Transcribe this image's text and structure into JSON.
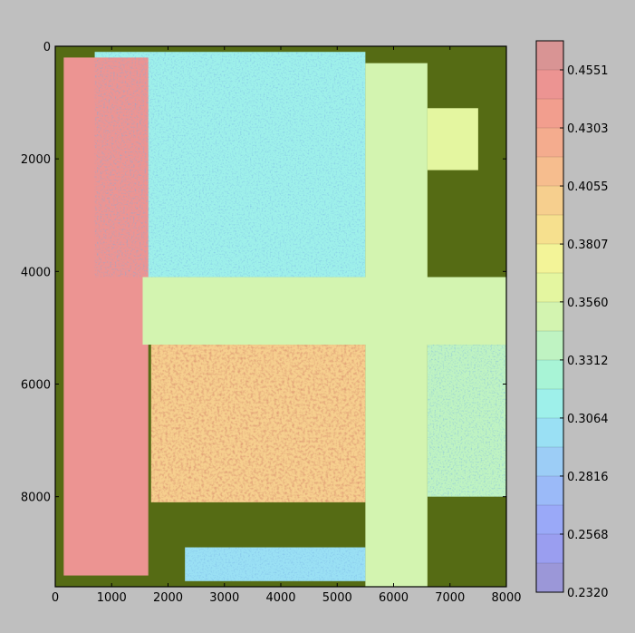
{
  "chart_data": {
    "type": "heatmap",
    "title": "",
    "xlabel": "",
    "ylabel": "",
    "xlim": [
      0,
      8000
    ],
    "ylim": [
      9600,
      0
    ],
    "x_ticks": [
      "0",
      "1000",
      "2000",
      "3000",
      "4000",
      "5000",
      "6000",
      "7000",
      "8000"
    ],
    "y_ticks": [
      "0",
      "2000",
      "4000",
      "6000",
      "8000"
    ],
    "x_tick_values": [
      0,
      1000,
      2000,
      3000,
      4000,
      5000,
      6000,
      7000,
      8000
    ],
    "y_tick_values": [
      0,
      2000,
      4000,
      6000,
      8000
    ],
    "colorbar": {
      "min": 0.232,
      "max": 0.4675,
      "levels": 19,
      "labels": [
        "0.4551",
        "0.4303",
        "0.4055",
        "0.3807",
        "0.3560",
        "0.3312",
        "0.3064",
        "0.2816",
        "0.2568",
        "0.2320"
      ],
      "label_values": [
        0.4551,
        0.4303,
        0.4055,
        0.3807,
        0.356,
        0.3312,
        0.3064,
        0.2816,
        0.2568,
        0.232
      ],
      "colors": [
        "#9b97d8",
        "#9a9ef0",
        "#9aa9f8",
        "#9bbaf8",
        "#9ccdf6",
        "#9ae0f4",
        "#9ef0ea",
        "#a8f4d6",
        "#bff3c2",
        "#d3f4b0",
        "#e4f6a0",
        "#f3f498",
        "#f6e08e",
        "#f6cf8e",
        "#f6bd8e",
        "#f4ac8e",
        "#f29e8e",
        "#ec9492",
        "#d99494"
      ]
    },
    "background_color": "#556b14",
    "regions": [
      {
        "label": "upper-left field",
        "x": [
          700,
          5500
        ],
        "y": [
          100,
          4100
        ],
        "mean_value": 0.31
      },
      {
        "label": "left roof strip",
        "x": [
          150,
          1650
        ],
        "y": [
          200,
          9400
        ],
        "mean_value": 0.455
      },
      {
        "label": "central road",
        "x": [
          1550,
          8000
        ],
        "y": [
          4100,
          5300
        ],
        "mean_value": 0.35
      },
      {
        "label": "lower-left field",
        "x": [
          1700,
          5500
        ],
        "y": [
          5300,
          8100
        ],
        "mean_value": 0.4
      },
      {
        "label": "right vertical road",
        "x": [
          5500,
          6600
        ],
        "y": [
          300,
          9600
        ],
        "mean_value": 0.35
      },
      {
        "label": "right upper patch",
        "x": [
          6600,
          7500
        ],
        "y": [
          1100,
          2200
        ],
        "mean_value": 0.36
      },
      {
        "label": "right lower field",
        "x": [
          6600,
          8000
        ],
        "y": [
          5300,
          8000
        ],
        "mean_value": 0.34
      },
      {
        "label": "bottom strip",
        "x": [
          2300,
          5500
        ],
        "y": [
          8900,
          9500
        ],
        "mean_value": 0.3
      }
    ]
  }
}
